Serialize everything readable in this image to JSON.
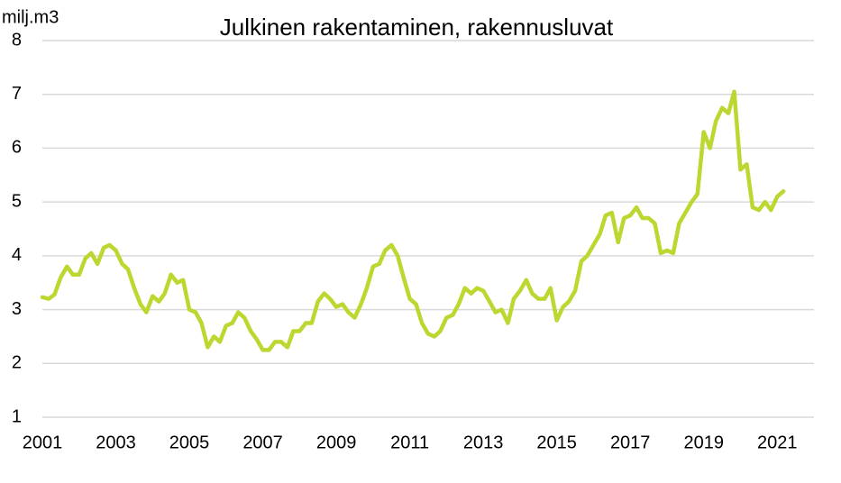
{
  "chart_data": {
    "type": "line",
    "title": "Julkinen rakentaminen, rakennusluvat",
    "y_label": "milj.m3",
    "x": [
      2001.0,
      2001.17,
      2001.33,
      2001.5,
      2001.67,
      2001.83,
      2002.0,
      2002.17,
      2002.33,
      2002.5,
      2002.67,
      2002.83,
      2003.0,
      2003.17,
      2003.33,
      2003.5,
      2003.67,
      2003.83,
      2004.0,
      2004.17,
      2004.33,
      2004.5,
      2004.67,
      2004.83,
      2005.0,
      2005.17,
      2005.33,
      2005.5,
      2005.67,
      2005.83,
      2006.0,
      2006.17,
      2006.33,
      2006.5,
      2006.67,
      2006.83,
      2007.0,
      2007.17,
      2007.33,
      2007.5,
      2007.67,
      2007.83,
      2008.0,
      2008.17,
      2008.33,
      2008.5,
      2008.67,
      2008.83,
      2009.0,
      2009.17,
      2009.33,
      2009.5,
      2009.67,
      2009.83,
      2010.0,
      2010.17,
      2010.33,
      2010.5,
      2010.67,
      2010.83,
      2011.0,
      2011.17,
      2011.33,
      2011.5,
      2011.67,
      2011.83,
      2012.0,
      2012.17,
      2012.33,
      2012.5,
      2012.67,
      2012.83,
      2013.0,
      2013.17,
      2013.33,
      2013.5,
      2013.67,
      2013.83,
      2014.0,
      2014.17,
      2014.33,
      2014.5,
      2014.67,
      2014.83,
      2015.0,
      2015.17,
      2015.33,
      2015.5,
      2015.67,
      2015.83,
      2016.0,
      2016.17,
      2016.33,
      2016.5,
      2016.67,
      2016.83,
      2017.0,
      2017.17,
      2017.33,
      2017.5,
      2017.67,
      2017.83,
      2018.0,
      2018.17,
      2018.33,
      2018.5,
      2018.67,
      2018.83,
      2019.0,
      2019.17,
      2019.33,
      2019.5,
      2019.67,
      2019.83,
      2020.0,
      2020.17,
      2020.33,
      2020.5,
      2020.67,
      2020.83,
      2021.0,
      2021.17
    ],
    "series": [
      {
        "name": "Julkinen rakentaminen",
        "color": "#bdd630",
        "values": [
          3.23,
          3.2,
          3.28,
          3.6,
          3.8,
          3.65,
          3.65,
          3.95,
          4.05,
          3.85,
          4.15,
          4.2,
          4.1,
          3.85,
          3.75,
          3.4,
          3.1,
          2.95,
          3.25,
          3.15,
          3.3,
          3.65,
          3.5,
          3.55,
          3.0,
          2.95,
          2.75,
          2.3,
          2.5,
          2.4,
          2.7,
          2.75,
          2.95,
          2.85,
          2.6,
          2.45,
          2.25,
          2.25,
          2.4,
          2.4,
          2.3,
          2.6,
          2.6,
          2.75,
          2.75,
          3.15,
          3.3,
          3.2,
          3.05,
          3.1,
          2.95,
          2.85,
          3.1,
          3.4,
          3.8,
          3.85,
          4.1,
          4.2,
          4.0,
          3.6,
          3.2,
          3.1,
          2.75,
          2.55,
          2.5,
          2.6,
          2.85,
          2.9,
          3.1,
          3.4,
          3.3,
          3.4,
          3.35,
          3.15,
          2.95,
          3.0,
          2.75,
          3.2,
          3.35,
          3.55,
          3.3,
          3.2,
          3.2,
          3.4,
          2.8,
          3.05,
          3.15,
          3.35,
          3.9,
          4.0,
          4.2,
          4.4,
          4.75,
          4.8,
          4.25,
          4.7,
          4.75,
          4.9,
          4.7,
          4.7,
          4.6,
          4.05,
          4.1,
          4.05,
          4.6,
          4.8,
          5.0,
          5.15,
          6.3,
          6.0,
          6.5,
          6.75,
          6.65,
          7.05,
          5.6,
          5.7,
          4.9,
          4.85,
          5.0,
          4.85,
          5.1,
          5.2
        ]
      }
    ],
    "xlim": [
      2001,
      2022
    ],
    "xticks": [
      2001,
      2003,
      2005,
      2007,
      2009,
      2011,
      2013,
      2015,
      2017,
      2019,
      2021
    ],
    "ylim": [
      1,
      8
    ],
    "yticks": [
      1,
      2,
      3,
      4,
      5,
      6,
      7,
      8
    ],
    "grid": true
  }
}
